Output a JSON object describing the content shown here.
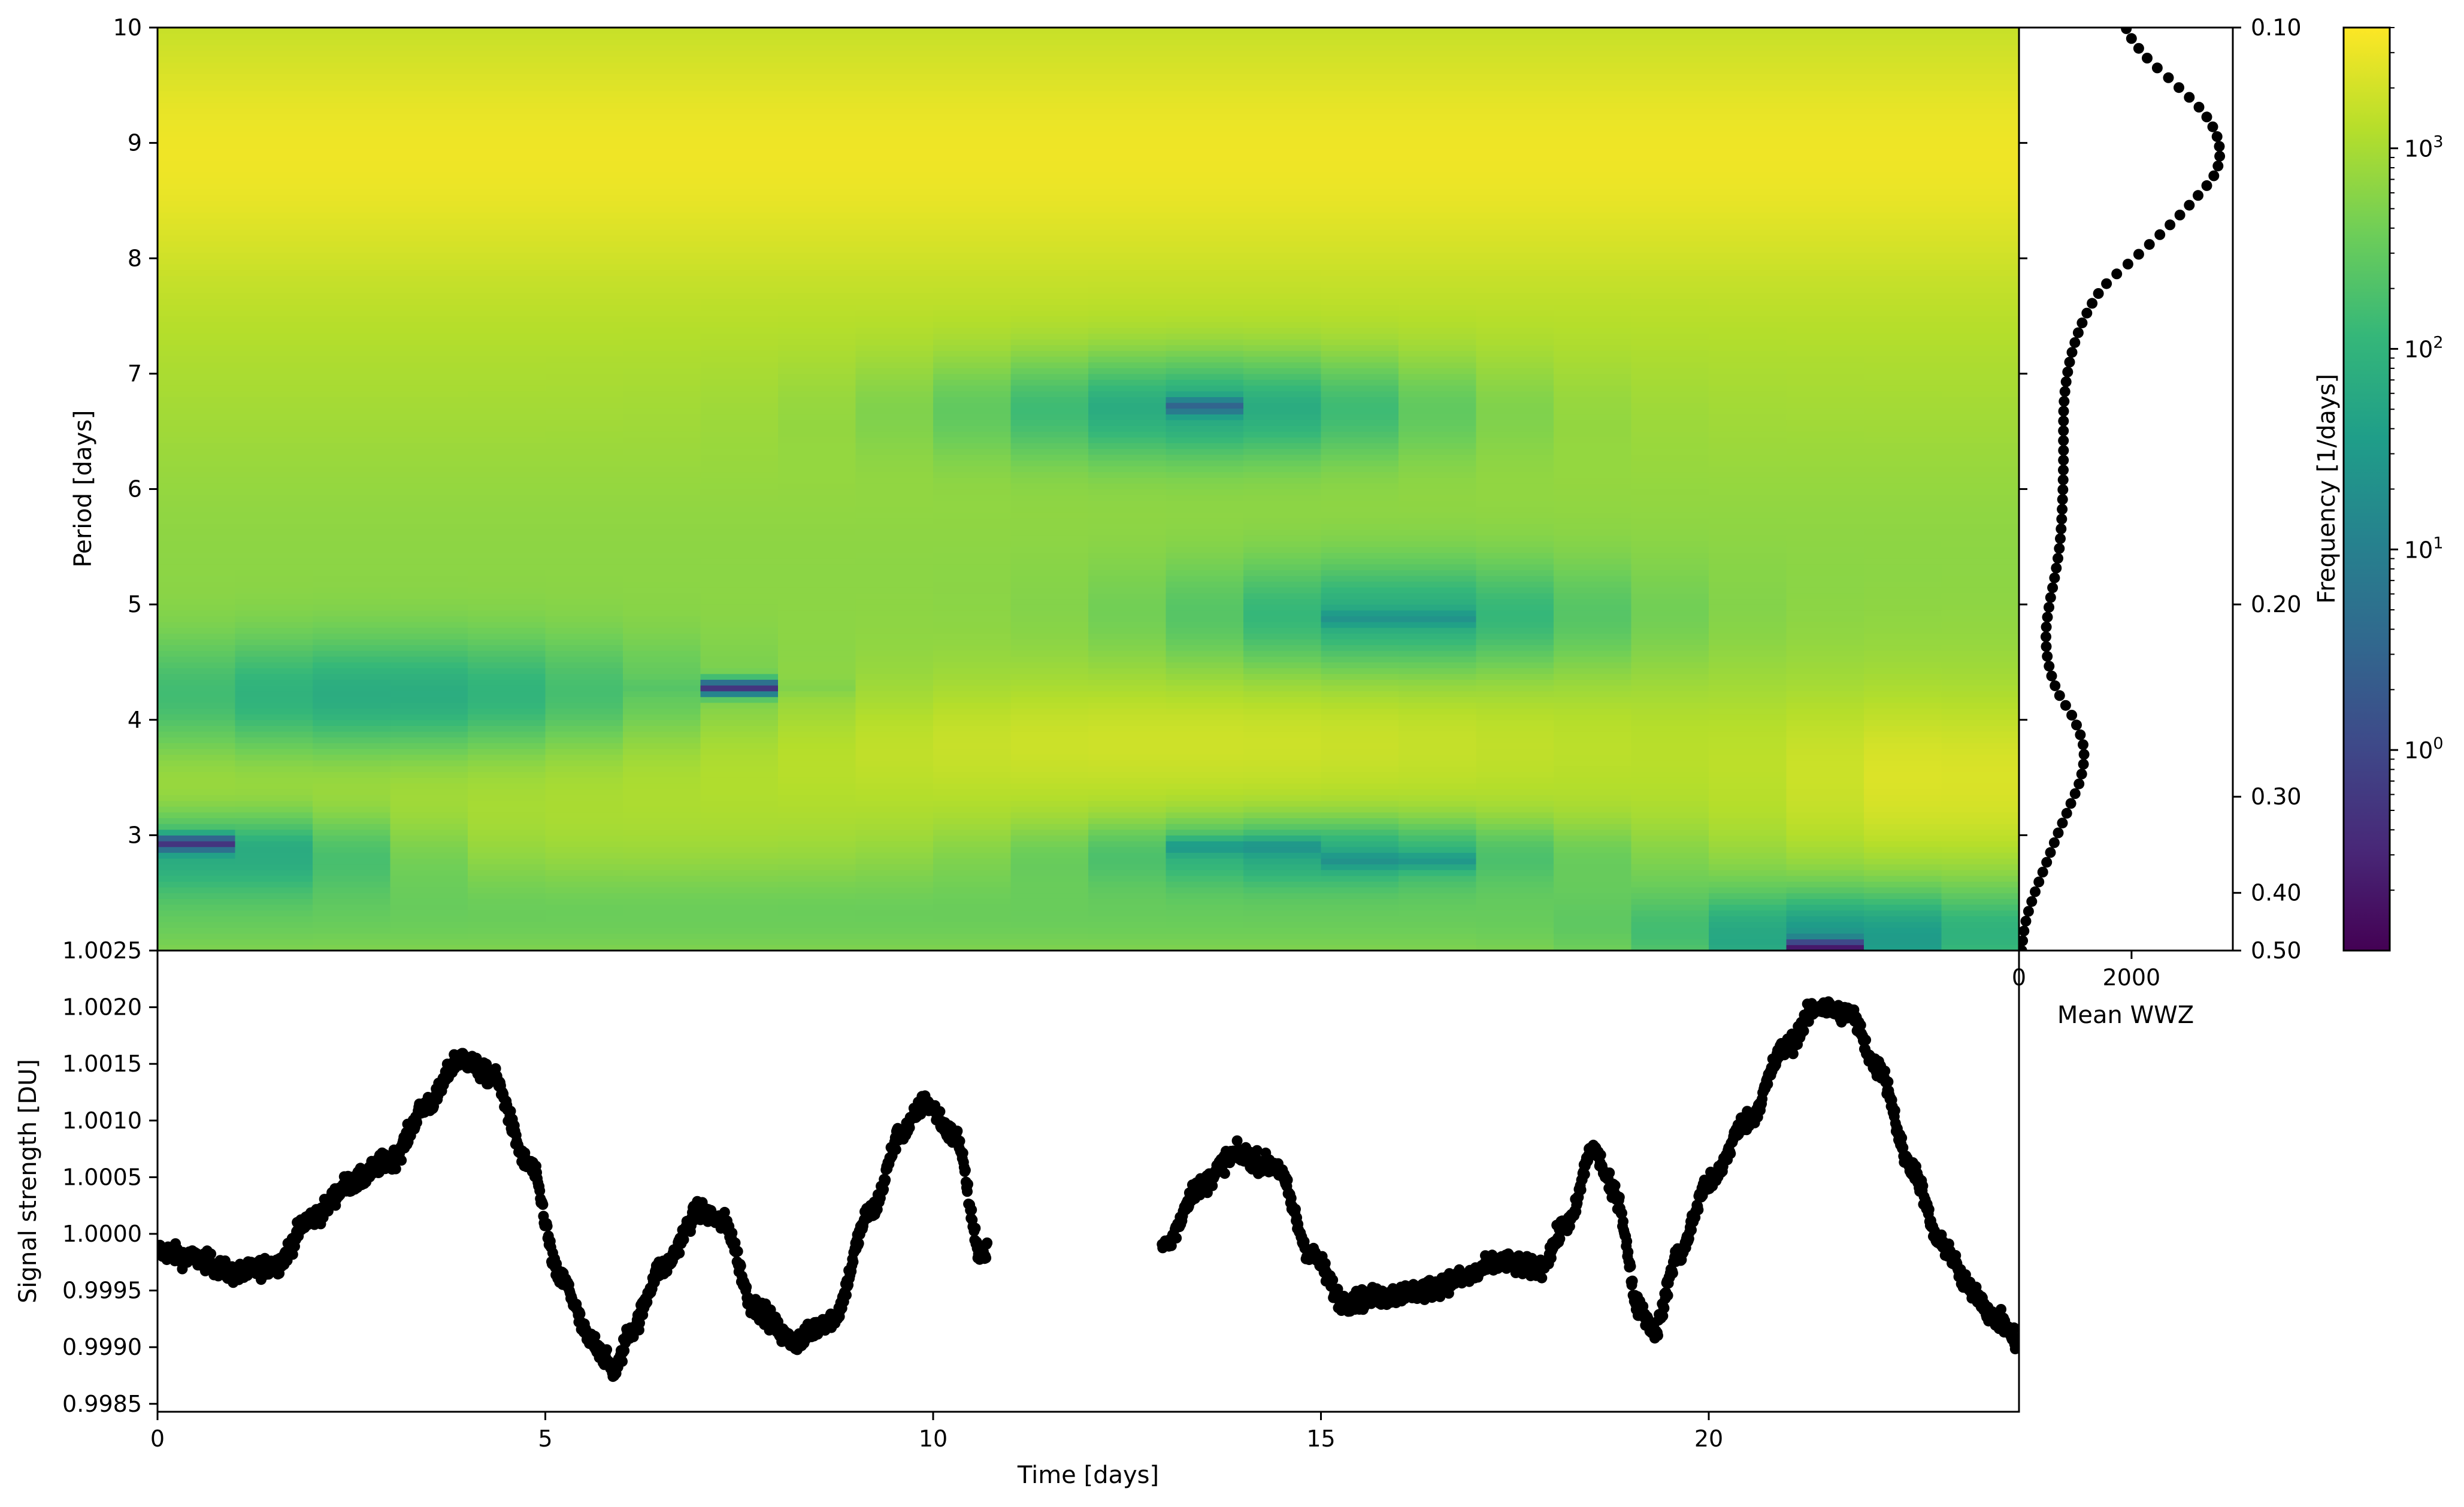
{
  "chart_data": [
    {
      "type": "heatmap",
      "name": "wwz-spectrogram",
      "xlabel": "",
      "ylabel": "Period [days]",
      "y_ticks": [
        "3",
        "4",
        "5",
        "6",
        "7",
        "8",
        "9",
        "10"
      ],
      "ylim_period": [
        2,
        10
      ],
      "secondary_y_label": "",
      "secondary_y_ticks": [
        "0.10",
        "0.20",
        "0.30",
        "0.40",
        "0.50"
      ],
      "x_bins_time": [
        0,
        1,
        2,
        3,
        4,
        5,
        6,
        7,
        8,
        9,
        10,
        11,
        12,
        13,
        14,
        15,
        16,
        17,
        18,
        19,
        20,
        21,
        22,
        23,
        24
      ],
      "period_grid_days": [
        2.0,
        2.3,
        2.6,
        2.9,
        3.2,
        3.5,
        3.8,
        4.1,
        4.4,
        4.7,
        5.0,
        5.3,
        5.6,
        5.9,
        6.2,
        6.5,
        6.8,
        7.1,
        7.4,
        7.7,
        8.0,
        8.3,
        8.6,
        8.9,
        9.2,
        9.5,
        9.8,
        10.0
      ],
      "notable_minima": [
        {
          "time": 0.5,
          "period": 2.93,
          "power": 0.5
        },
        {
          "time": 7.5,
          "period": 4.28,
          "power": 0.5
        },
        {
          "time": 13.5,
          "period": 6.72,
          "power": 3
        },
        {
          "time": 16.0,
          "period": 4.88,
          "power": 5
        },
        {
          "time": 14.0,
          "period": 2.9,
          "power": 5
        },
        {
          "time": 16.0,
          "period": 2.78,
          "power": 5
        },
        {
          "time": 21.5,
          "period": 2.03,
          "power": 0.2
        }
      ],
      "value_scale": "log"
    },
    {
      "type": "line",
      "name": "mean-wwz",
      "xlabel": "Mean WWZ",
      "x_ticks": [
        "0",
        "2000"
      ],
      "xlim": [
        0,
        3800
      ],
      "ylim_period": [
        2,
        10
      ],
      "points": [
        [
          2.0,
          50
        ],
        [
          2.25,
          120
        ],
        [
          2.5,
          280
        ],
        [
          2.75,
          480
        ],
        [
          3.0,
          680
        ],
        [
          3.25,
          900
        ],
        [
          3.5,
          1100
        ],
        [
          3.75,
          1150
        ],
        [
          4.0,
          980
        ],
        [
          4.25,
          680
        ],
        [
          4.5,
          520
        ],
        [
          4.75,
          480
        ],
        [
          5.0,
          540
        ],
        [
          5.25,
          640
        ],
        [
          5.5,
          720
        ],
        [
          5.75,
          760
        ],
        [
          6.0,
          780
        ],
        [
          6.25,
          790
        ],
        [
          6.5,
          790
        ],
        [
          6.75,
          800
        ],
        [
          7.0,
          860
        ],
        [
          7.25,
          980
        ],
        [
          7.5,
          1180
        ],
        [
          7.75,
          1500
        ],
        [
          8.0,
          2050
        ],
        [
          8.25,
          2600
        ],
        [
          8.5,
          3100
        ],
        [
          8.75,
          3500
        ],
        [
          9.0,
          3550
        ],
        [
          9.25,
          3300
        ],
        [
          9.5,
          2800
        ],
        [
          9.75,
          2250
        ],
        [
          10.0,
          1900
        ]
      ]
    },
    {
      "type": "scatter",
      "name": "signal",
      "xlabel": "Time [days]",
      "ylabel": "Signal strength [DU]",
      "x_ticks": [
        "0",
        "5",
        "10",
        "15",
        "20"
      ],
      "y_ticks": [
        "0.9985",
        "0.9990",
        "0.9995",
        "1.0000",
        "1.0005",
        "1.0010",
        "1.0015",
        "1.0020",
        "1.0025"
      ],
      "xlim": [
        0,
        24
      ],
      "ylim": [
        0.99843,
        1.0025
      ],
      "trend": [
        [
          0.0,
          0.99985
        ],
        [
          0.5,
          0.99978
        ],
        [
          1.0,
          0.99965
        ],
        [
          1.5,
          0.99972
        ],
        [
          2.0,
          1.00015
        ],
        [
          2.5,
          1.00045
        ],
        [
          3.0,
          1.00065
        ],
        [
          3.5,
          1.00115
        ],
        [
          3.9,
          1.00155
        ],
        [
          4.3,
          1.0014
        ],
        [
          4.8,
          1.0006
        ],
        [
          5.2,
          0.9996
        ],
        [
          5.6,
          0.99905
        ],
        [
          5.9,
          0.9988
        ],
        [
          6.1,
          0.99915
        ],
        [
          6.5,
          0.9997
        ],
        [
          7.0,
          1.0002
        ],
        [
          7.3,
          1.0001
        ],
        [
          7.7,
          0.99935
        ],
        [
          8.2,
          0.99905
        ],
        [
          8.7,
          0.99925
        ],
        [
          9.2,
          1.0002
        ],
        [
          9.6,
          1.0009
        ],
        [
          9.9,
          1.00115
        ],
        [
          10.3,
          1.00085
        ],
        [
          10.6,
          0.99985
        ],
        [
          13.0,
          0.9999
        ],
        [
          13.4,
          1.0004
        ],
        [
          13.9,
          1.0007
        ],
        [
          14.4,
          1.0006
        ],
        [
          14.9,
          0.9998
        ],
        [
          15.3,
          0.9994
        ],
        [
          15.8,
          0.99945
        ],
        [
          16.3,
          0.9995
        ],
        [
          16.8,
          0.9996
        ],
        [
          17.3,
          0.99975
        ],
        [
          17.8,
          0.9997
        ],
        [
          18.2,
          1.0001
        ],
        [
          18.5,
          1.00075
        ],
        [
          18.8,
          1.00035
        ],
        [
          19.1,
          0.99935
        ],
        [
          19.3,
          0.99915
        ],
        [
          19.6,
          0.9998
        ],
        [
          20.0,
          1.00045
        ],
        [
          20.5,
          1.001
        ],
        [
          21.0,
          1.00165
        ],
        [
          21.4,
          1.002
        ],
        [
          21.8,
          1.00195
        ],
        [
          22.2,
          1.00145
        ],
        [
          22.6,
          1.0006
        ],
        [
          23.0,
          0.9999
        ],
        [
          23.4,
          0.9995
        ],
        [
          23.7,
          0.99925
        ],
        [
          24.0,
          0.99905
        ]
      ],
      "noise": 6e-05,
      "gap": [
        10.7,
        12.95
      ]
    },
    {
      "type": "colorbar",
      "name": "frequency-colorbar",
      "label": "Frequency [1/days]",
      "scale": "log",
      "range": [
        0.1,
        4000
      ],
      "ticks": [
        {
          "base": "10",
          "exp": "0"
        },
        {
          "base": "10",
          "exp": "1"
        },
        {
          "base": "10",
          "exp": "2"
        },
        {
          "base": "10",
          "exp": "3"
        }
      ],
      "colormap": [
        "#440154",
        "#482878",
        "#3e4989",
        "#31688e",
        "#26828e",
        "#1f9e89",
        "#35b779",
        "#6ece58",
        "#b5de2b",
        "#fde725"
      ]
    }
  ]
}
